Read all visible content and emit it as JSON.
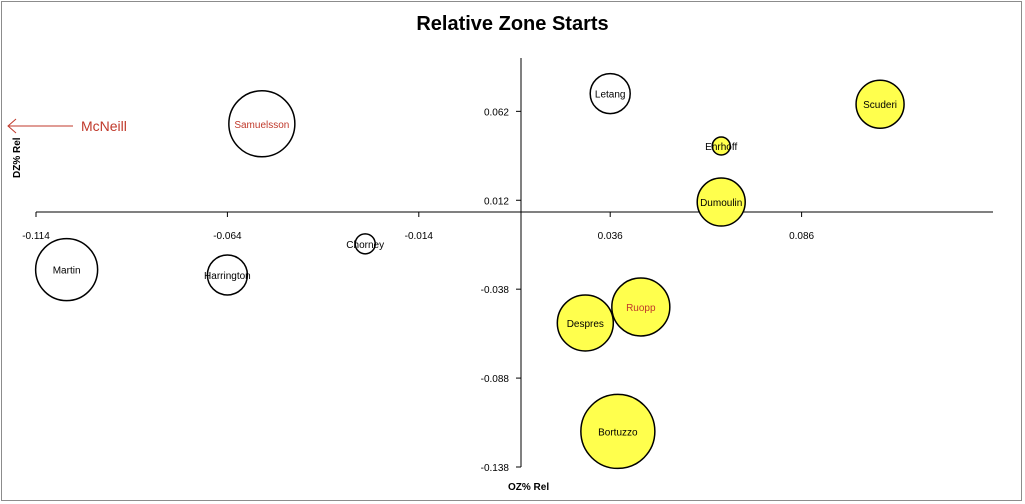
{
  "chart_data": {
    "type": "scatter",
    "title": "Relative Zone Starts",
    "xlabel": "OZ% Rel",
    "ylabel": "DZ% Rel",
    "xlim": [
      -0.114,
      0.136
    ],
    "ylim": [
      -0.138,
      0.092
    ],
    "x_ticks": [
      -0.114,
      -0.064,
      -0.014,
      0.036,
      0.086
    ],
    "y_ticks": [
      0.062,
      0.012,
      -0.038,
      -0.088,
      -0.138
    ],
    "grid": false,
    "colors": {
      "yellow": "#ffff4d",
      "white": "#ffffff",
      "black_label": "#000000",
      "red_label": "#c0392b"
    },
    "points": [
      {
        "label": "Samuelsson",
        "x": -0.055,
        "y": 0.055,
        "size": 33,
        "fill": "white",
        "label_color": "red"
      },
      {
        "label": "Martin",
        "x": -0.106,
        "y": -0.027,
        "size": 31,
        "fill": "white",
        "label_color": "black"
      },
      {
        "label": "Harrington",
        "x": -0.064,
        "y": -0.03,
        "size": 20,
        "fill": "white",
        "label_color": "black"
      },
      {
        "label": "Chorney",
        "x": -0.028,
        "y": -0.0125,
        "size": 10,
        "fill": "white",
        "label_color": "black"
      },
      {
        "label": "Letang",
        "x": 0.036,
        "y": 0.072,
        "size": 20,
        "fill": "white",
        "label_color": "black"
      },
      {
        "label": "Ehrhoff",
        "x": 0.065,
        "y": 0.0425,
        "size": 9,
        "fill": "yellow",
        "label_color": "black"
      },
      {
        "label": "Dumoulin",
        "x": 0.065,
        "y": 0.011,
        "size": 24,
        "fill": "yellow",
        "label_color": "black"
      },
      {
        "label": "Scuderi",
        "x": 0.1065,
        "y": 0.066,
        "size": 24,
        "fill": "yellow",
        "label_color": "black"
      },
      {
        "label": "Ruopp",
        "x": 0.044,
        "y": -0.048,
        "size": 29,
        "fill": "yellow",
        "label_color": "red"
      },
      {
        "label": "Despres",
        "x": 0.0295,
        "y": -0.057,
        "size": 28,
        "fill": "yellow",
        "label_color": "black"
      },
      {
        "label": "Bortuzzo",
        "x": 0.038,
        "y": -0.118,
        "size": 37,
        "fill": "yellow",
        "label_color": "black"
      }
    ],
    "annotation": {
      "label": "McNeill",
      "color": "red",
      "direction": "left"
    }
  }
}
